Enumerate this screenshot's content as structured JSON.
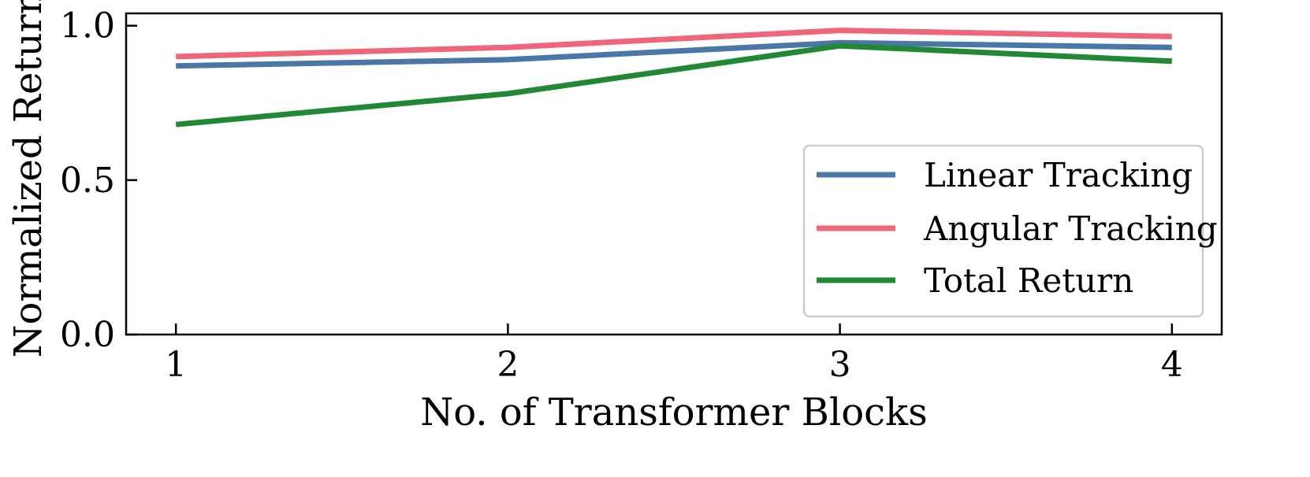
{
  "chart_data": {
    "type": "line",
    "title": "",
    "xlabel": "No. of Transformer Blocks",
    "ylabel": "Normalized Return",
    "x": [
      1,
      2,
      3,
      4
    ],
    "xticks": [
      "1",
      "2",
      "3",
      "4"
    ],
    "yticks": [
      "0.0",
      "0.5",
      "1.0"
    ],
    "xlim": [
      0.85,
      4.15
    ],
    "ylim": [
      0.0,
      1.04
    ],
    "grid": false,
    "legend_position": "lower-right",
    "series": [
      {
        "name": "Linear Tracking",
        "color": "#4a77a8",
        "values": [
          0.87,
          0.89,
          0.945,
          0.93
        ]
      },
      {
        "name": "Angular Tracking",
        "color": "#ee6677",
        "values": [
          0.9,
          0.93,
          0.985,
          0.965
        ]
      },
      {
        "name": "Total Return",
        "color": "#228833",
        "values": [
          0.68,
          0.78,
          0.935,
          0.885
        ]
      }
    ]
  }
}
